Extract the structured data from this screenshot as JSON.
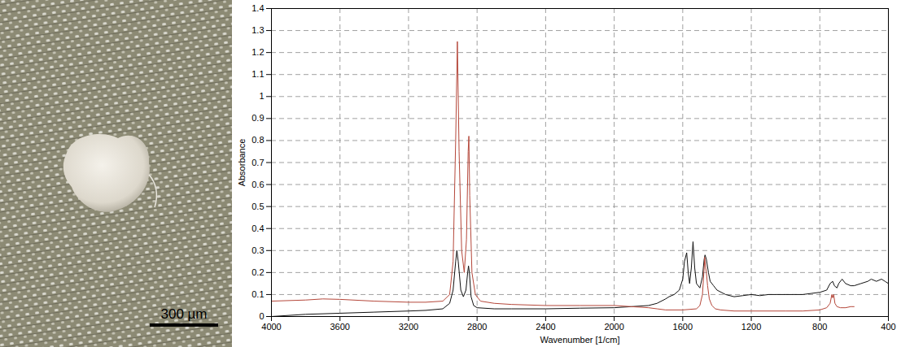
{
  "chart_data": {
    "type": "line",
    "x_label": "Wavenumber [1/cm]",
    "y_label": "Absorbance",
    "xlim": [
      4000,
      400
    ],
    "ylim": [
      0,
      1.4
    ],
    "xticks": [
      4000,
      3600,
      3200,
      2800,
      2400,
      2000,
      1600,
      1200,
      800,
      400
    ],
    "yticks": [
      0,
      0.1,
      0.2,
      0.3,
      0.4,
      0.5,
      0.6,
      0.7,
      0.8,
      0.9,
      1,
      1.1,
      1.2,
      1.3,
      1.4
    ],
    "grid": true,
    "series": [
      {
        "color": "#111111",
        "x": [
          4000,
          3800,
          3600,
          3400,
          3200,
          3100,
          3000,
          2960,
          2940,
          2925,
          2918,
          2910,
          2895,
          2880,
          2865,
          2855,
          2850,
          2845,
          2835,
          2820,
          2800,
          2700,
          2600,
          2400,
          2200,
          2000,
          1900,
          1800,
          1750,
          1700,
          1680,
          1650,
          1620,
          1600,
          1590,
          1577,
          1568,
          1560,
          1550,
          1540,
          1530,
          1520,
          1500,
          1485,
          1475,
          1470,
          1462,
          1450,
          1440,
          1420,
          1400,
          1350,
          1300,
          1250,
          1200,
          1150,
          1100,
          1050,
          1000,
          950,
          900,
          850,
          800,
          760,
          740,
          725,
          715,
          700,
          690,
          670,
          650,
          620,
          600,
          560,
          520,
          500,
          470,
          440,
          420,
          400
        ],
        "values": [
          0.0,
          0.01,
          0.015,
          0.02,
          0.025,
          0.028,
          0.035,
          0.06,
          0.12,
          0.25,
          0.3,
          0.25,
          0.12,
          0.09,
          0.12,
          0.2,
          0.23,
          0.2,
          0.09,
          0.05,
          0.04,
          0.035,
          0.035,
          0.035,
          0.038,
          0.04,
          0.045,
          0.05,
          0.06,
          0.08,
          0.09,
          0.1,
          0.12,
          0.17,
          0.25,
          0.29,
          0.2,
          0.15,
          0.22,
          0.34,
          0.22,
          0.15,
          0.13,
          0.18,
          0.26,
          0.28,
          0.26,
          0.2,
          0.16,
          0.14,
          0.12,
          0.1,
          0.09,
          0.095,
          0.1,
          0.095,
          0.1,
          0.1,
          0.1,
          0.1,
          0.1,
          0.105,
          0.11,
          0.12,
          0.15,
          0.16,
          0.14,
          0.13,
          0.15,
          0.17,
          0.15,
          0.14,
          0.14,
          0.15,
          0.16,
          0.17,
          0.16,
          0.17,
          0.16,
          0.15
        ]
      },
      {
        "color": "#b5473a",
        "x": [
          4000,
          3800,
          3700,
          3600,
          3400,
          3200,
          3100,
          3000,
          2960,
          2940,
          2925,
          2915,
          2905,
          2890,
          2875,
          2862,
          2852,
          2848,
          2843,
          2830,
          2810,
          2780,
          2700,
          2600,
          2400,
          2200,
          2000,
          1900,
          1800,
          1750,
          1700,
          1600,
          1520,
          1500,
          1485,
          1475,
          1472,
          1466,
          1462,
          1455,
          1445,
          1430,
          1410,
          1380,
          1300,
          1200,
          1000,
          900,
          800,
          760,
          740,
          730,
          725,
          719,
          712,
          700,
          680,
          650,
          620,
          600
        ],
        "values": [
          0.07,
          0.075,
          0.08,
          0.078,
          0.07,
          0.065,
          0.065,
          0.07,
          0.1,
          0.25,
          0.8,
          1.25,
          0.75,
          0.3,
          0.2,
          0.35,
          0.75,
          0.82,
          0.55,
          0.2,
          0.1,
          0.07,
          0.06,
          0.055,
          0.05,
          0.05,
          0.05,
          0.045,
          0.04,
          0.035,
          0.03,
          0.03,
          0.035,
          0.05,
          0.1,
          0.22,
          0.27,
          0.22,
          0.2,
          0.14,
          0.08,
          0.05,
          0.035,
          0.03,
          0.025,
          0.025,
          0.025,
          0.025,
          0.03,
          0.04,
          0.06,
          0.1,
          0.085,
          0.1,
          0.06,
          0.045,
          0.04,
          0.04,
          0.045,
          0.045
        ]
      }
    ]
  },
  "photo": {
    "scale_bar": "300 µm"
  }
}
